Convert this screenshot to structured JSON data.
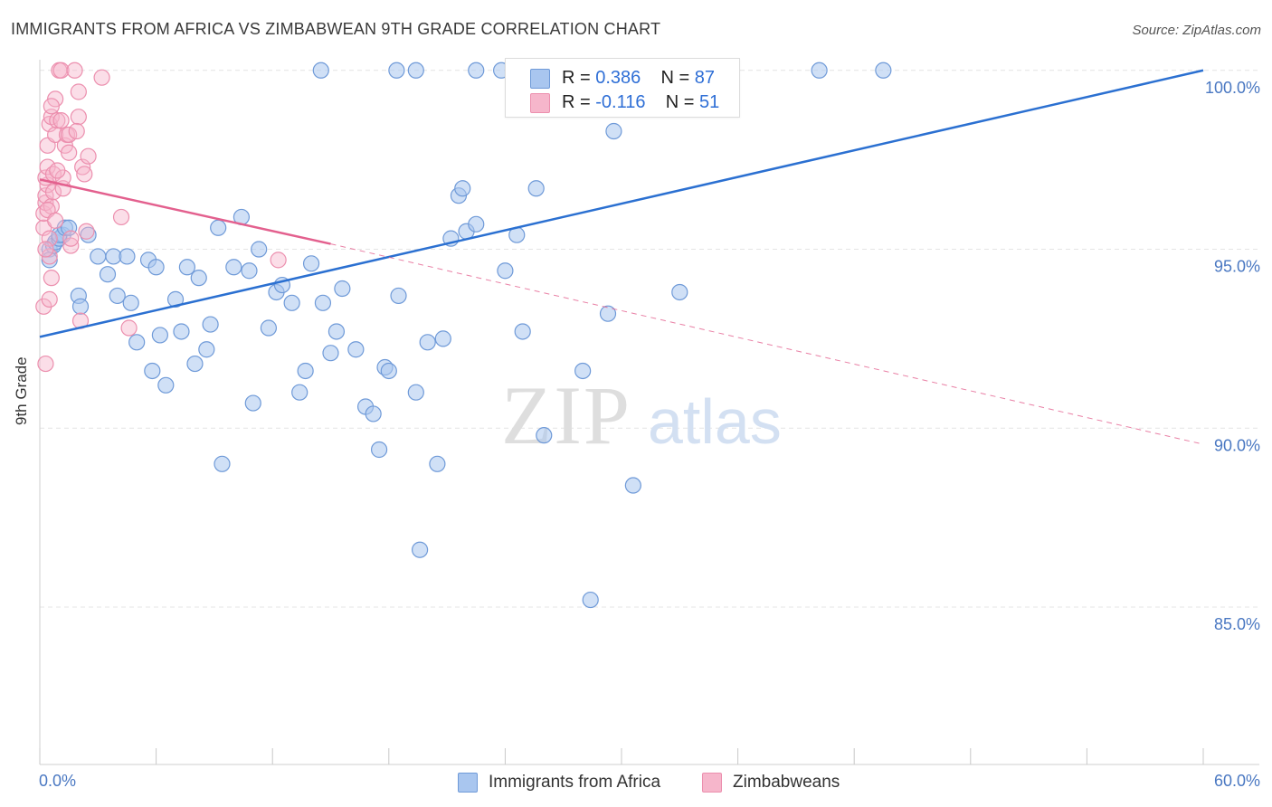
{
  "title": "IMMIGRANTS FROM AFRICA VS ZIMBABWEAN 9TH GRADE CORRELATION CHART",
  "source": "Source: ZipAtlas.com",
  "watermark": {
    "zip": "ZIP",
    "atlas": "atlas"
  },
  "colors": {
    "blue_fill": "#a9c6ef",
    "blue_stroke": "#6f9ad8",
    "blue_line": "#2b70d1",
    "pink_fill": "#f6b6cb",
    "pink_stroke": "#ec8fae",
    "pink_line": "#e3608e",
    "grid": "#e4e4e4",
    "tick_text": "#4a78c2"
  },
  "legend_top": {
    "rows": [
      {
        "r_label": "R = ",
        "r_value": "0.386",
        "n_label": "N = ",
        "n_value": "87"
      },
      {
        "r_label": "R = ",
        "r_value": "-0.116",
        "n_label": "N = ",
        "n_value": "51"
      }
    ]
  },
  "legend_bottom": [
    "Immigrants from Africa",
    "Zimbabweans"
  ],
  "chart_data": {
    "type": "scatter",
    "title": "IMMIGRANTS FROM AFRICA VS ZIMBABWEAN 9TH GRADE CORRELATION CHART",
    "xlabel": "",
    "ylabel": "9th Grade",
    "xlim": [
      0,
      60
    ],
    "ylim": [
      80.6,
      100.5
    ],
    "x_tick_labels": [
      "0.0%",
      "60.0%"
    ],
    "y_ticks": [
      85,
      90,
      95,
      100
    ],
    "y_tick_labels": [
      "85.0%",
      "90.0%",
      "95.0%",
      "100.0%"
    ],
    "grid": "horizontal dashed",
    "series": [
      {
        "name": "Immigrants from Africa",
        "color": "#a9c6ef",
        "r": 0.386,
        "n": 87,
        "trend": {
          "x": [
            0,
            60
          ],
          "y": [
            92.55,
            100.0
          ]
        },
        "points": [
          [
            0.5,
            95.0
          ],
          [
            0.5,
            94.7
          ],
          [
            0.7,
            95.1
          ],
          [
            0.8,
            95.2
          ],
          [
            1.0,
            95.3
          ],
          [
            1.2,
            95.4
          ],
          [
            1.0,
            95.4
          ],
          [
            1.3,
            95.6
          ],
          [
            1.5,
            95.6
          ],
          [
            2.5,
            95.4
          ],
          [
            2.0,
            93.7
          ],
          [
            2.1,
            93.4
          ],
          [
            3.0,
            94.8
          ],
          [
            3.5,
            94.3
          ],
          [
            3.8,
            94.8
          ],
          [
            4.0,
            93.7
          ],
          [
            4.5,
            94.8
          ],
          [
            4.7,
            93.5
          ],
          [
            5.0,
            92.4
          ],
          [
            5.6,
            94.7
          ],
          [
            5.8,
            91.6
          ],
          [
            6.0,
            94.5
          ],
          [
            6.2,
            92.6
          ],
          [
            6.5,
            91.2
          ],
          [
            7.0,
            93.6
          ],
          [
            7.3,
            92.7
          ],
          [
            7.6,
            94.5
          ],
          [
            8.0,
            91.8
          ],
          [
            8.2,
            94.2
          ],
          [
            8.6,
            92.2
          ],
          [
            8.8,
            92.9
          ],
          [
            9.2,
            95.6
          ],
          [
            9.4,
            89.0
          ],
          [
            10.0,
            94.5
          ],
          [
            10.4,
            95.9
          ],
          [
            10.8,
            94.4
          ],
          [
            11.0,
            90.7
          ],
          [
            11.3,
            95.0
          ],
          [
            11.8,
            92.8
          ],
          [
            12.2,
            93.8
          ],
          [
            12.5,
            94.0
          ],
          [
            13.0,
            93.5
          ],
          [
            13.4,
            91.0
          ],
          [
            13.7,
            91.6
          ],
          [
            14.0,
            94.6
          ],
          [
            14.6,
            93.5
          ],
          [
            15.0,
            92.1
          ],
          [
            15.3,
            92.7
          ],
          [
            15.6,
            93.9
          ],
          [
            16.3,
            92.2
          ],
          [
            16.8,
            90.6
          ],
          [
            17.2,
            90.4
          ],
          [
            17.5,
            89.4
          ],
          [
            17.8,
            91.7
          ],
          [
            18.0,
            91.6
          ],
          [
            18.5,
            93.7
          ],
          [
            19.4,
            91.0
          ],
          [
            19.6,
            86.6
          ],
          [
            20.0,
            92.4
          ],
          [
            20.5,
            89.0
          ],
          [
            20.8,
            92.5
          ],
          [
            21.2,
            95.3
          ],
          [
            21.6,
            96.5
          ],
          [
            21.8,
            96.7
          ],
          [
            22.0,
            95.5
          ],
          [
            22.5,
            95.7
          ],
          [
            24.0,
            94.4
          ],
          [
            24.6,
            95.4
          ],
          [
            24.9,
            92.7
          ],
          [
            25.6,
            96.7
          ],
          [
            26.0,
            89.8
          ],
          [
            28.0,
            91.6
          ],
          [
            28.4,
            85.2
          ],
          [
            29.3,
            93.2
          ],
          [
            29.6,
            98.3
          ],
          [
            30.6,
            88.4
          ],
          [
            33.0,
            93.8
          ],
          [
            14.5,
            100.0
          ],
          [
            18.4,
            100.0
          ],
          [
            19.4,
            100.0
          ],
          [
            22.5,
            100.0
          ],
          [
            23.8,
            100.0
          ],
          [
            26.5,
            100.0
          ],
          [
            28.0,
            100.0
          ],
          [
            30.5,
            100.0
          ],
          [
            40.2,
            100.0
          ],
          [
            43.5,
            100.0
          ]
        ]
      },
      {
        "name": "Zimbabweans",
        "color": "#f6b6cb",
        "r": -0.116,
        "n": 51,
        "trend": {
          "x": [
            0,
            15
          ],
          "y": [
            96.95,
            95.15
          ],
          "dash_to": {
            "x": 60,
            "y": 89.55
          }
        },
        "points": [
          [
            0.2,
            93.4
          ],
          [
            0.3,
            91.8
          ],
          [
            0.2,
            95.6
          ],
          [
            0.2,
            96.0
          ],
          [
            0.3,
            96.3
          ],
          [
            0.3,
            96.5
          ],
          [
            0.4,
            96.8
          ],
          [
            0.3,
            97.0
          ],
          [
            0.4,
            97.3
          ],
          [
            0.4,
            97.9
          ],
          [
            0.5,
            98.5
          ],
          [
            0.6,
            98.7
          ],
          [
            0.6,
            94.2
          ],
          [
            0.5,
            94.8
          ],
          [
            0.5,
            95.3
          ],
          [
            0.6,
            96.2
          ],
          [
            0.7,
            96.6
          ],
          [
            0.7,
            97.1
          ],
          [
            0.8,
            98.2
          ],
          [
            0.9,
            98.6
          ],
          [
            0.8,
            99.2
          ],
          [
            1.0,
            100.0
          ],
          [
            1.1,
            100.0
          ],
          [
            1.2,
            96.7
          ],
          [
            1.2,
            97.0
          ],
          [
            1.3,
            97.9
          ],
          [
            1.4,
            98.2
          ],
          [
            1.5,
            98.2
          ],
          [
            1.5,
            97.7
          ],
          [
            1.6,
            95.1
          ],
          [
            1.8,
            100.0
          ],
          [
            2.0,
            99.4
          ],
          [
            2.0,
            98.7
          ],
          [
            2.2,
            97.3
          ],
          [
            2.3,
            97.1
          ],
          [
            2.5,
            97.6
          ],
          [
            2.1,
            93.0
          ],
          [
            4.2,
            95.9
          ],
          [
            4.6,
            92.8
          ],
          [
            12.3,
            94.7
          ],
          [
            1.6,
            95.3
          ],
          [
            0.4,
            96.1
          ],
          [
            0.9,
            97.2
          ],
          [
            1.1,
            98.6
          ],
          [
            3.2,
            99.8
          ],
          [
            0.5,
            93.6
          ],
          [
            0.8,
            95.8
          ],
          [
            1.9,
            98.3
          ],
          [
            0.3,
            95.0
          ],
          [
            2.4,
            95.5
          ],
          [
            0.6,
            99.0
          ]
        ]
      }
    ]
  }
}
